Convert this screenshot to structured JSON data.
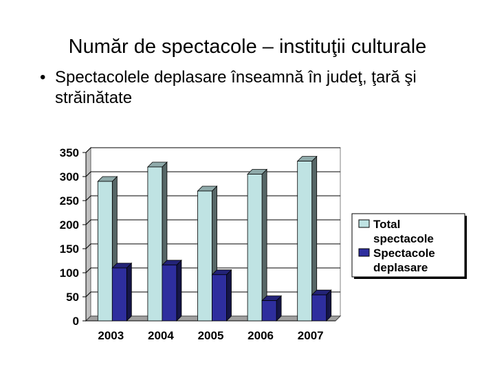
{
  "slide": {
    "title": "Număr de spectacole – instituţii culturale",
    "bullet_symbol": "•",
    "bullet_text": "Spectacolele deplasare înseamnă în judeţ, ţară şi străinătate"
  },
  "chart_data": {
    "type": "bar",
    "categories": [
      "2003",
      "2004",
      "2005",
      "2006",
      "2007"
    ],
    "series": [
      {
        "name": "Total spectacole",
        "values": [
          290,
          320,
          270,
          305,
          332
        ],
        "color": "#bfe3e3"
      },
      {
        "name": "Spectacole deplasare",
        "values": [
          110,
          116,
          96,
          42,
          54
        ],
        "color": "#2e2e9e"
      }
    ],
    "ylim": [
      0,
      350
    ],
    "yticks": [
      0,
      50,
      100,
      150,
      200,
      250,
      300,
      350
    ],
    "grid": true,
    "legend_position": "right",
    "legend_lines": [
      [
        "Total",
        "spectacole"
      ],
      [
        "Spectacole",
        "deplasare"
      ]
    ],
    "style": "3d-clustered-bar"
  }
}
